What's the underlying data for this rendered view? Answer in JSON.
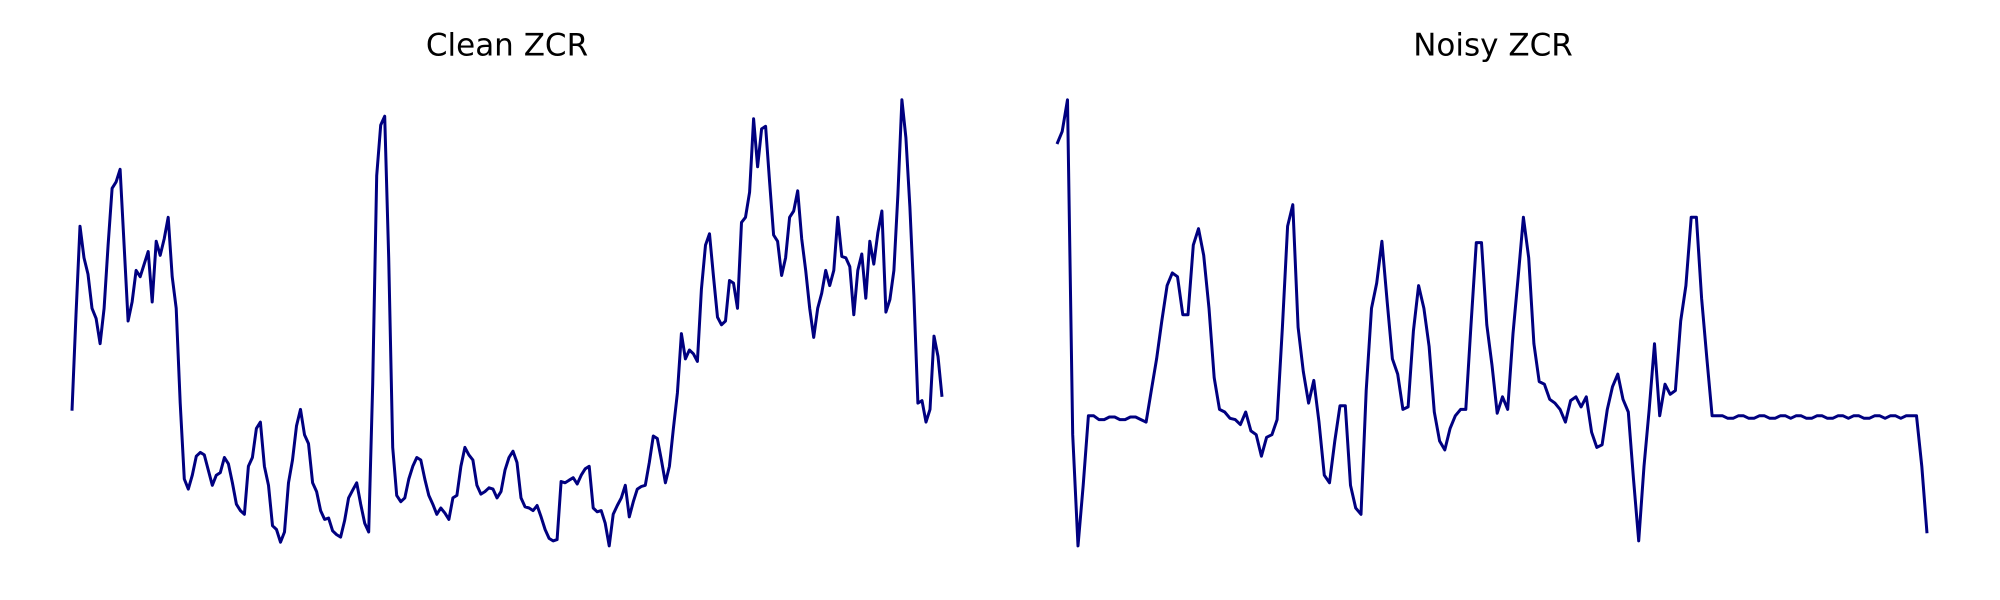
{
  "chart_data": [
    {
      "type": "line",
      "title": "Clean ZCR",
      "color": "#000080",
      "ylim": [
        0,
        360
      ],
      "values": [
        111,
        187,
        257,
        232,
        219,
        192,
        184,
        164,
        192,
        242,
        287,
        292,
        302,
        242,
        182,
        197,
        222,
        217,
        227,
        237,
        197,
        245,
        234,
        247,
        264,
        217,
        192,
        117,
        57,
        49,
        60,
        75,
        78,
        76,
        64,
        52,
        60,
        62,
        74,
        69,
        54,
        37,
        32,
        29,
        67,
        74,
        97,
        102,
        67,
        52,
        20,
        17,
        7,
        15,
        54,
        72,
        99,
        112,
        92,
        85,
        54,
        47,
        32,
        25,
        26,
        16,
        13,
        11,
        24,
        42,
        48,
        54,
        37,
        22,
        15,
        132,
        297,
        337,
        344,
        232,
        82,
        44,
        39,
        42,
        57,
        67,
        74,
        72,
        57,
        44,
        37,
        29,
        34,
        30,
        25,
        42,
        44,
        67,
        82,
        76,
        72,
        52,
        45,
        47,
        50,
        49,
        42,
        47,
        64,
        74,
        79,
        70,
        42,
        35,
        34,
        32,
        36,
        27,
        17,
        10,
        8,
        9,
        55,
        54,
        56,
        58,
        53,
        60,
        65,
        67,
        34,
        31,
        32,
        22,
        4,
        29,
        36,
        42,
        52,
        27,
        39,
        49,
        51,
        52,
        70,
        91,
        89,
        72,
        54,
        67,
        97,
        125,
        172,
        152,
        159,
        156,
        150,
        207,
        242,
        251,
        217,
        185,
        179,
        182,
        214,
        212,
        192,
        260,
        264,
        284,
        342,
        304,
        334,
        336,
        292,
        250,
        245,
        218,
        232,
        264,
        269,
        285,
        247,
        222,
        192,
        169,
        192,
        204,
        222,
        210,
        222,
        264,
        233,
        232,
        225,
        187,
        222,
        235,
        200,
        245,
        227,
        252,
        269,
        189,
        199,
        222,
        282,
        357,
        327,
        272,
        202,
        117,
        119,
        102,
        112,
        170,
        154,
        122
      ]
    },
    {
      "type": "line",
      "title": "Noisy ZCR",
      "color": "#000080",
      "ylim": [
        0,
        360
      ],
      "values": [
        322,
        332,
        357,
        92,
        4,
        52,
        107,
        107,
        104,
        104,
        106,
        106,
        104,
        104,
        106,
        106,
        104,
        102,
        127,
        152,
        182,
        210,
        220,
        217,
        187,
        187,
        242,
        255,
        234,
        192,
        137,
        112,
        110,
        105,
        104,
        100,
        110,
        95,
        92,
        75,
        90,
        92,
        104,
        177,
        257,
        274,
        177,
        142,
        117,
        135,
        102,
        60,
        54,
        87,
        115,
        115,
        52,
        34,
        29,
        127,
        192,
        212,
        245,
        197,
        152,
        140,
        112,
        114,
        174,
        210,
        192,
        162,
        110,
        87,
        80,
        97,
        107,
        112,
        112,
        179,
        244,
        244,
        179,
        147,
        109,
        122,
        112,
        172,
        217,
        264,
        232,
        164,
        134,
        132,
        120,
        117,
        112,
        102,
        119,
        122,
        114,
        122,
        94,
        82,
        84,
        112,
        130,
        140,
        120,
        110,
        57,
        8,
        67,
        112,
        164,
        107,
        132,
        124,
        127,
        182,
        210,
        264,
        264,
        200,
        152,
        107,
        107,
        107,
        105,
        105,
        107,
        107,
        105,
        105,
        107,
        107,
        105,
        105,
        107,
        107,
        105,
        107,
        107,
        105,
        105,
        107,
        107,
        105,
        105,
        107,
        107,
        105,
        107,
        107,
        105,
        105,
        107,
        107,
        105,
        107,
        107,
        105,
        107,
        107,
        107,
        67,
        14
      ]
    }
  ]
}
